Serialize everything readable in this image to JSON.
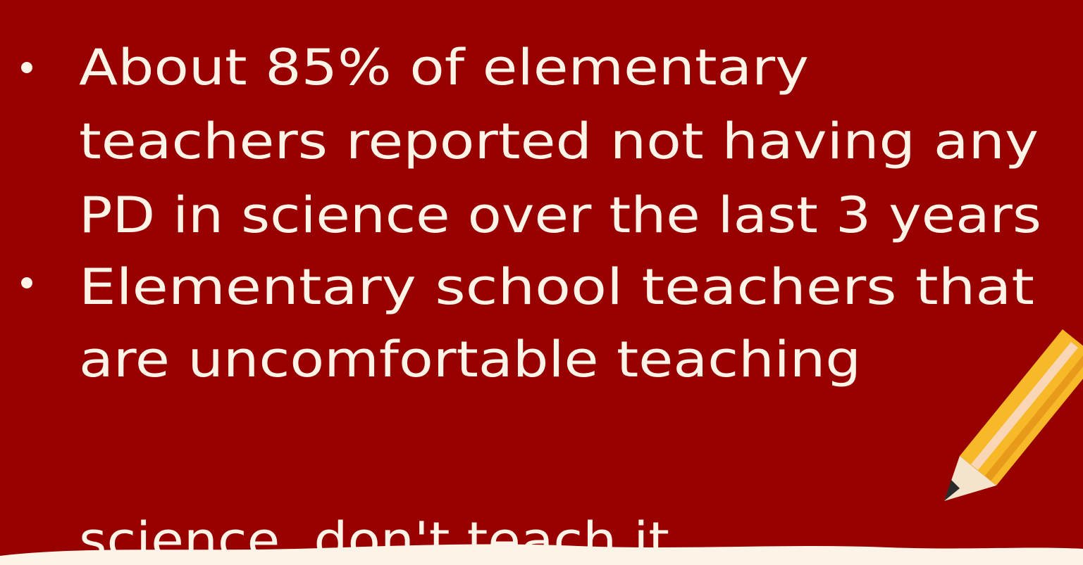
{
  "bullets": [
    {
      "lines": [
        "About 85% of elementary",
        "teachers reported not having any",
        "PD in science over the last 3 years"
      ]
    },
    {
      "lines": [
        "Elementary school teachers that",
        "are uncomfortable teaching",
        "science, don't teach it"
      ]
    }
  ]
}
